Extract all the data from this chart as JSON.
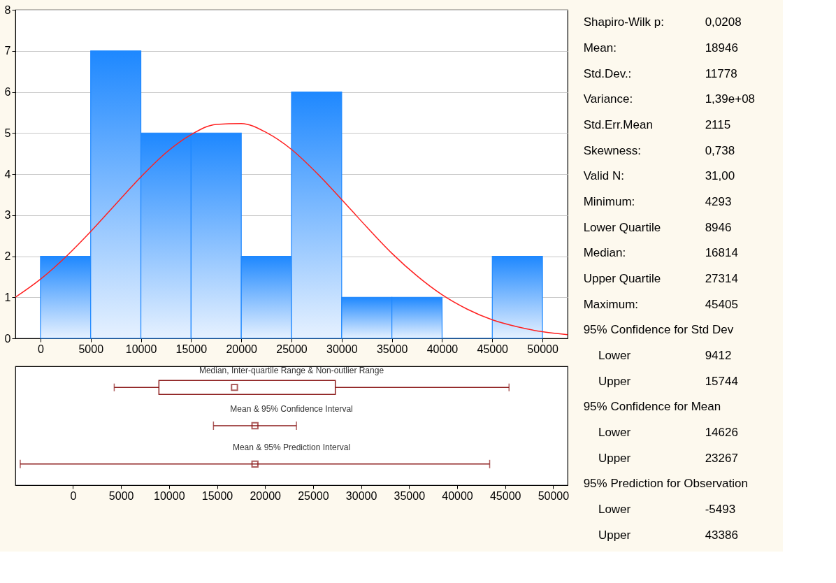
{
  "chart_data": [
    {
      "type": "histogram",
      "bins": [
        0,
        5000,
        10000,
        15000,
        20000,
        25000,
        30000,
        35000,
        40000,
        45000,
        50000
      ],
      "values": [
        2,
        7,
        5,
        5,
        2,
        6,
        1,
        1,
        0,
        2
      ],
      "color": "#1e88ff",
      "xlim": [
        -2500,
        52500
      ],
      "xticks": [
        0,
        5000,
        10000,
        15000,
        20000,
        25000,
        30000,
        35000,
        40000,
        45000,
        50000
      ],
      "ylim": [
        0,
        8
      ],
      "yticks": [
        0,
        1,
        2,
        3,
        4,
        5,
        6,
        7,
        8
      ],
      "grid": "y",
      "series": [
        {
          "type": "line",
          "color": "#ff2020",
          "x": [
            -2500,
            0,
            2500,
            5000,
            7500,
            10000,
            12500,
            15000,
            17500,
            20000,
            22500,
            25000,
            27500,
            30000,
            32500,
            35000,
            37500,
            40000,
            42500,
            45000,
            47500,
            50000,
            52500
          ],
          "values": [
            1.0,
            1.44,
            1.98,
            2.6,
            3.27,
            3.93,
            4.52,
            4.96,
            5.21,
            5.23,
            5.01,
            4.6,
            4.03,
            3.38,
            2.71,
            2.07,
            1.52,
            1.06,
            0.71,
            0.45,
            0.28,
            0.16,
            0.09
          ]
        }
      ]
    },
    {
      "type": "box",
      "orientation": "horizontal",
      "categories": [
        "Median, Inter-quartile Range & Non-outlier Range",
        "Mean & 95% Confidence Interval",
        "Mean & 95% Prediction Interval"
      ],
      "xlim": [
        -6000,
        51500
      ],
      "xticks": [
        0,
        5000,
        10000,
        15000,
        20000,
        25000,
        30000,
        35000,
        40000,
        45000,
        50000
      ],
      "marker": "square",
      "grid": false,
      "series": [
        {
          "type": "box",
          "color": "#8b1a1a",
          "boxes": [
            {
              "low": 4293,
              "q1": 8946,
              "median": 16814,
              "q3": 27314,
              "high": 45405
            },
            null,
            null
          ]
        },
        {
          "type": "scatter",
          "color": "#8b1a1a",
          "values": [
            null,
            18946,
            18946
          ],
          "errors": [
            null,
            [
              14626,
              23267
            ],
            [
              -5493,
              43386
            ]
          ]
        }
      ]
    },
    {
      "type": "other",
      "annotations": [
        "Shapiro-Wilk p:\t0,0208",
        "Mean:\t18946",
        "Std.Dev.:\t11778",
        "Variance:\t1,39e+08",
        "Std.Err.Mean\t2115",
        "Skewness:\t0,738",
        "Valid N:\t31,00",
        "Minimum:\t4293",
        "Lower Quartile\t8946",
        "Median:\t16814",
        "Upper Quartile\t27314",
        "Maximum:\t45405",
        "95% Confidence for Std Dev",
        "Lower\t9412",
        "Upper\t15744",
        "95% Confidence for Mean",
        "Lower\t14626",
        "Upper\t23267",
        "95% Prediction for Observation",
        "Lower\t-5493",
        "Upper\t43386"
      ]
    }
  ]
}
